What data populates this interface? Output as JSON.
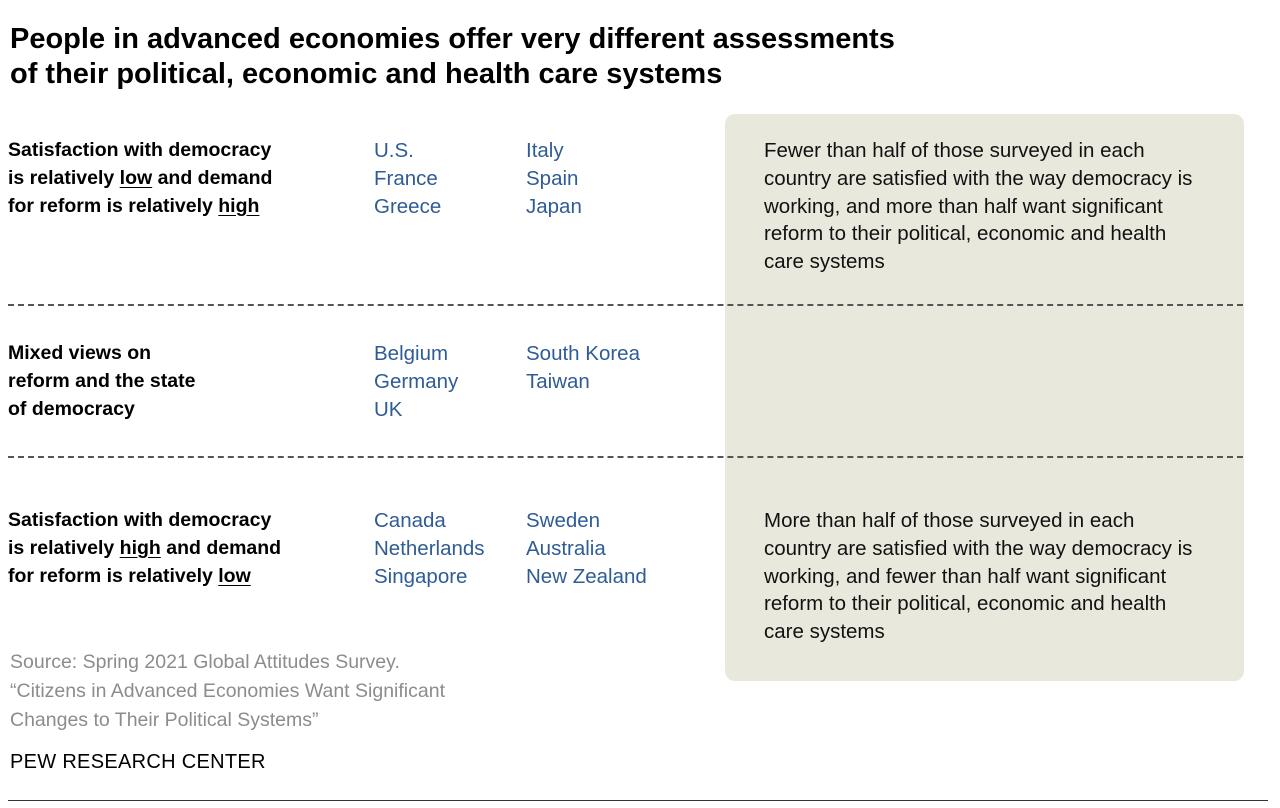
{
  "title": {
    "line1": "People in advanced economies offer very different assessments",
    "line2": "of their political, economic and health care systems"
  },
  "rows": [
    {
      "label": {
        "l1": "Satisfaction with democracy",
        "l2_a": "is relatively ",
        "l2_u": "low",
        "l2_b": " and demand",
        "l3_a": "for reform is relatively ",
        "l3_u": "high"
      },
      "countries": [
        "U.S.",
        "France",
        "Greece",
        "Italy",
        "Spain",
        "Japan"
      ]
    },
    {
      "label": {
        "l1": "Mixed views on",
        "l2": "reform and the state",
        "l3": "of democracy"
      },
      "countries": [
        "Belgium",
        "Germany",
        "UK",
        "South Korea",
        "Taiwan"
      ]
    },
    {
      "label": {
        "l1": "Satisfaction with democracy",
        "l2_a": "is relatively ",
        "l2_u": "high",
        "l2_b": " and demand",
        "l3_a": "for reform is relatively ",
        "l3_u": "low"
      },
      "countries": [
        "Canada",
        "Netherlands",
        "Singapore",
        "Sweden",
        "Australia",
        "New Zealand"
      ]
    }
  ],
  "panel": {
    "top_text": "Fewer than half of those surveyed in each country are satisfied with the way democracy is working, and more than half want significant reform to their political, economic and health care systems",
    "bottom_text": "More than half of those surveyed in each country are satisfied with the way democracy is working, and fewer than half want significant reform to their political, economic and health care systems"
  },
  "source": {
    "line1": "Source: Spring 2021 Global Attitudes Survey.",
    "line2": "“Citizens in Advanced Economies Want Significant",
    "line3": "Changes to Their Political Systems”"
  },
  "org": "PEW RESEARCH CENTER",
  "colors": {
    "country_text": "#2f5c96",
    "panel_bg": "#e9e8dc",
    "source_text": "#8c8c8c"
  }
}
